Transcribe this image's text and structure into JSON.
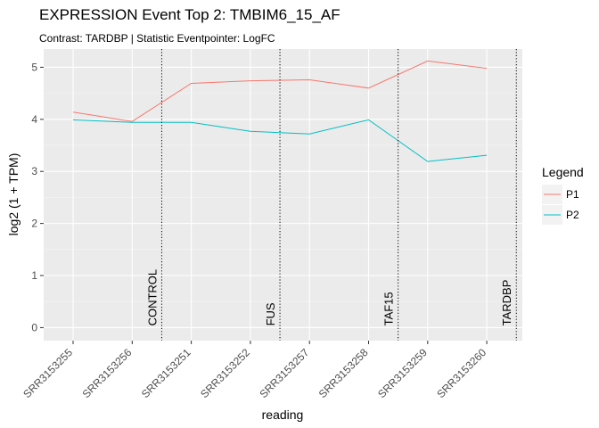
{
  "chart_data": {
    "type": "line",
    "title": "EXPRESSION Event Top 2: TMBIM6_15_AF",
    "subtitle": "Contrast: TARDBP | Statistic Eventpointer: LogFC",
    "xlabel": "reading",
    "ylabel": "log2 (1 + TPM)",
    "categories": [
      "SRR3153255",
      "SRR3153256",
      "SRR3153251",
      "SRR3153252",
      "SRR3153257",
      "SRR3153258",
      "SRR3153259",
      "SRR3153260"
    ],
    "ylim": [
      -0.25,
      5.35
    ],
    "yticks": [
      0,
      1,
      2,
      3,
      4,
      5
    ],
    "series": [
      {
        "name": "P1",
        "color": "#F8766D",
        "values": [
          4.14,
          3.96,
          4.69,
          4.74,
          4.76,
          4.6,
          5.12,
          4.98
        ]
      },
      {
        "name": "P2",
        "color": "#00BFC4",
        "values": [
          3.99,
          3.94,
          3.94,
          3.77,
          3.72,
          3.99,
          3.19,
          3.31
        ]
      }
    ],
    "vlines": [
      {
        "label": "CONTROL",
        "x": 2.5
      },
      {
        "label": "FUS",
        "x": 4.5
      },
      {
        "label": "TAF15",
        "x": 6.5
      },
      {
        "label": "TARDBP",
        "x": 8.5
      }
    ],
    "legend": {
      "title": "Legend",
      "placement": "right"
    },
    "grid": true,
    "panel_background": "#EBEBEB"
  }
}
